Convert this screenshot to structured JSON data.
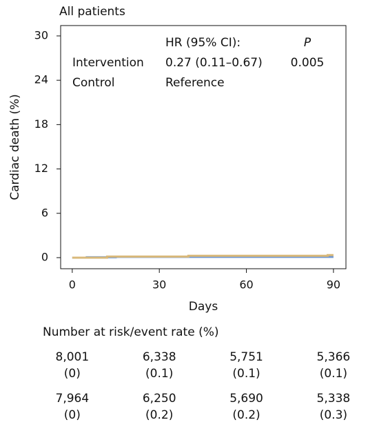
{
  "chart_data": {
    "type": "line",
    "title": "All patients",
    "ylabel": "Cardiac death (%)",
    "xlabel": "Days",
    "xlim": [
      -4,
      94.3
    ],
    "ylim": [
      -1.5,
      31.4
    ],
    "xticks": [
      0,
      30,
      60,
      90
    ],
    "yticks": [
      0,
      6,
      12,
      18,
      24,
      30
    ],
    "step": true,
    "legend_header": {
      "hr": "HR (95% CI):",
      "p": "P"
    },
    "series": [
      {
        "name": "Intervention",
        "color": "#6f97d2",
        "hr_ci": "0.27 (0.11–0.67)",
        "p_value": "0.005",
        "x": [
          0,
          5,
          15,
          40,
          90
        ],
        "values": [
          0,
          0.05,
          0.1,
          0.1,
          0.1
        ]
      },
      {
        "name": "Control",
        "color": "#d9b97a",
        "hr_ci": "Reference",
        "x": [
          0,
          12,
          40,
          88,
          90
        ],
        "values": [
          0,
          0.15,
          0.25,
          0.35,
          0.35
        ]
      }
    ],
    "risk_table": {
      "title": "Number at risk/event rate (%)",
      "x": [
        0,
        30,
        60,
        90
      ],
      "rows": [
        {
          "at_risk": [
            8001,
            6338,
            5751,
            5366
          ],
          "at_risk_labels": [
            "8,001",
            "6,338",
            "5,751",
            "5,366"
          ],
          "event_rate": [
            0,
            0.1,
            0.1,
            0.1
          ],
          "event_rate_labels": [
            "(0)",
            "(0.1)",
            "(0.1)",
            "(0.1)"
          ]
        },
        {
          "at_risk": [
            7964,
            6250,
            5690,
            5338
          ],
          "at_risk_labels": [
            "7,964",
            "6,250",
            "5,690",
            "5,338"
          ],
          "event_rate": [
            0,
            0.2,
            0.2,
            0.3
          ],
          "event_rate_labels": [
            "(0)",
            "(0.2)",
            "(0.2)",
            "(0.3)"
          ]
        }
      ]
    }
  }
}
